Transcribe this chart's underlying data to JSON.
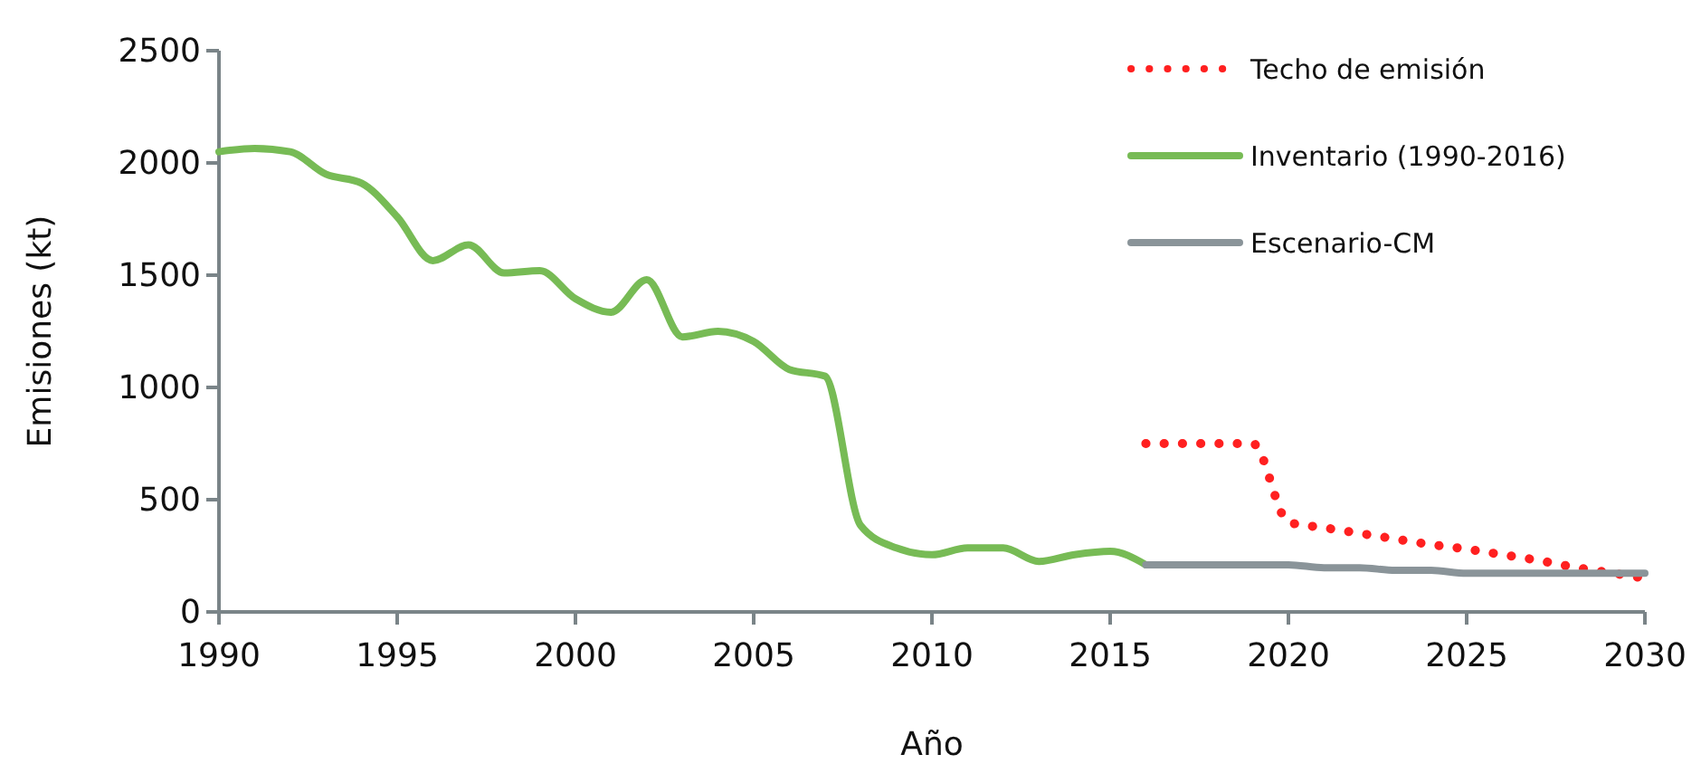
{
  "chart_data": {
    "type": "line",
    "xlabel": "Año",
    "ylabel": "Emisiones (kt)",
    "xlim": [
      1990,
      2030
    ],
    "xticks": [
      1990,
      1995,
      2000,
      2005,
      2010,
      2015,
      2020,
      2025,
      2030
    ],
    "ylim": [
      0,
      2500
    ],
    "yticks": [
      0,
      500,
      1000,
      1500,
      2000,
      2500
    ],
    "grid": false,
    "legend": "top right",
    "series": [
      {
        "name": "Techo de emisión",
        "color": "#ff2020",
        "line_style": "dotted",
        "x": [
          2016,
          2017,
          2018,
          2019,
          2020,
          2021,
          2022,
          2023,
          2024,
          2025,
          2026,
          2027,
          2028,
          2029,
          2030
        ],
        "values": [
          750,
          750,
          750,
          750,
          400,
          375,
          350,
          325,
          300,
          280,
          255,
          230,
          200,
          175,
          150
        ]
      },
      {
        "name": "Inventario (1990-2016)",
        "color": "#77bb55",
        "line_style": "solid",
        "x": [
          1990,
          1991,
          1992,
          1993,
          1994,
          1995,
          1996,
          1997,
          1998,
          1999,
          2000,
          2001,
          2002,
          2003,
          2004,
          2005,
          2006,
          2007,
          2008,
          2009,
          2010,
          2011,
          2012,
          2013,
          2014,
          2015,
          2016
        ],
        "values": [
          2050,
          2065,
          2050,
          1950,
          1910,
          1760,
          1565,
          1635,
          1510,
          1520,
          1395,
          1335,
          1480,
          1225,
          1250,
          1205,
          1080,
          1050,
          385,
          285,
          255,
          285,
          285,
          225,
          255,
          270,
          210
        ]
      },
      {
        "name": "Escenario-CM",
        "color": "#8a9499",
        "line_style": "solid",
        "x": [
          2016,
          2017,
          2018,
          2019,
          2020,
          2021,
          2022,
          2023,
          2024,
          2025,
          2026,
          2027,
          2028,
          2029,
          2030
        ],
        "values": [
          210,
          210,
          210,
          210,
          210,
          197,
          197,
          185,
          185,
          172,
          172,
          172,
          172,
          172,
          172
        ]
      }
    ]
  }
}
